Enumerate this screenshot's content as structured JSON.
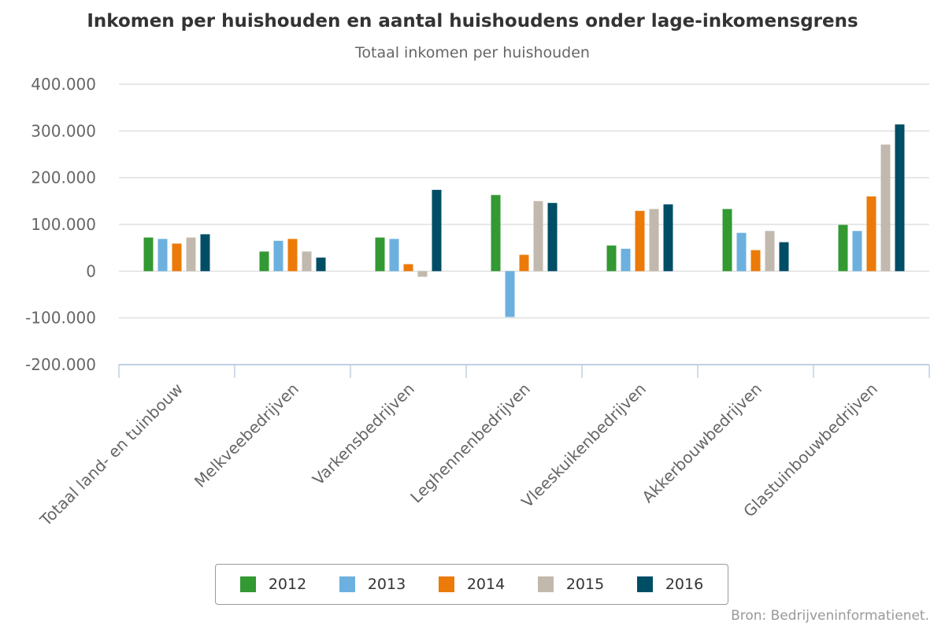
{
  "chart_data": {
    "type": "bar",
    "title": "Inkomen per huishouden en aantal huishoudens onder lage-inkomensgrens",
    "subtitle": "Totaal inkomen per huishouden",
    "categories": [
      "Totaal land- en tuinbouw",
      "Melkveebedrijven",
      "Varkensbedrijven",
      "Leghennenbedrijven",
      "Vleeskuikenbedrijven",
      "Akkerbouwbedrijven",
      "Glastuinbouwbedrijven"
    ],
    "series": [
      {
        "name": "2012",
        "color": "#339933",
        "values": [
          72000,
          42000,
          72000,
          163000,
          55000,
          133000,
          99000
        ]
      },
      {
        "name": "2013",
        "color": "#6cb0e0",
        "values": [
          69000,
          65000,
          69000,
          -98000,
          48000,
          82000,
          86000
        ]
      },
      {
        "name": "2014",
        "color": "#ec7a08",
        "values": [
          59000,
          69000,
          15000,
          35000,
          129000,
          45000,
          160000
        ]
      },
      {
        "name": "2015",
        "color": "#c1b9ad",
        "values": [
          72000,
          42000,
          -12000,
          150000,
          133000,
          86000,
          271000
        ]
      },
      {
        "name": "2016",
        "color": "#004d66",
        "values": [
          79000,
          29000,
          174000,
          146000,
          143000,
          62000,
          314000
        ]
      }
    ],
    "ylim": [
      -200000,
      400000
    ],
    "yticks": [
      400000,
      300000,
      200000,
      100000,
      0,
      -100000,
      -200000
    ],
    "ytick_labels": [
      "400.000",
      "300.000",
      "200.000",
      "100.000",
      "0",
      "-100.000",
      "-200.000"
    ],
    "xlabel": "",
    "ylabel": "",
    "grid": true,
    "legend_position": "bottom-center"
  },
  "source": "Bron: Bedrijveninformatienet."
}
